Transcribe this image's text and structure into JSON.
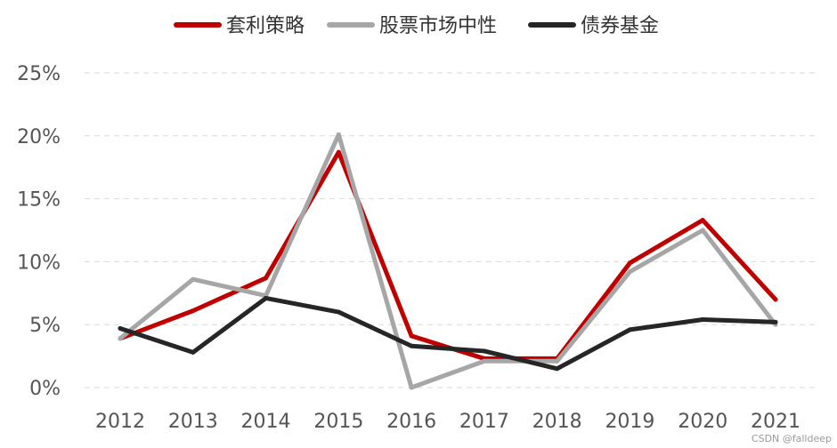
{
  "chart_data": {
    "type": "line",
    "title": "",
    "xlabel": "",
    "ylabel": "",
    "x": [
      "2012",
      "2013",
      "2014",
      "2015",
      "2016",
      "2017",
      "2018",
      "2019",
      "2020",
      "2021"
    ],
    "ylim": [
      0,
      25
    ],
    "yticks": [
      "0%",
      "5%",
      "10%",
      "15%",
      "20%",
      "25%"
    ],
    "grid": true,
    "legend_position": "top",
    "series": [
      {
        "name": "套利策略",
        "color": "#c00000",
        "values": [
          3.9,
          6.1,
          8.7,
          18.7,
          4.1,
          2.3,
          2.3,
          9.9,
          13.3,
          7.0
        ]
      },
      {
        "name": "股票市场中性",
        "color": "#a6a6a6",
        "values": [
          3.9,
          8.6,
          7.3,
          20.1,
          0.0,
          2.1,
          2.1,
          9.2,
          12.5,
          5.0
        ]
      },
      {
        "name": "债券基金",
        "color": "#262626",
        "values": [
          4.7,
          2.8,
          7.1,
          6.0,
          3.3,
          2.9,
          1.5,
          4.6,
          5.4,
          5.2
        ]
      }
    ]
  },
  "watermark": "CSDN @falldeep"
}
